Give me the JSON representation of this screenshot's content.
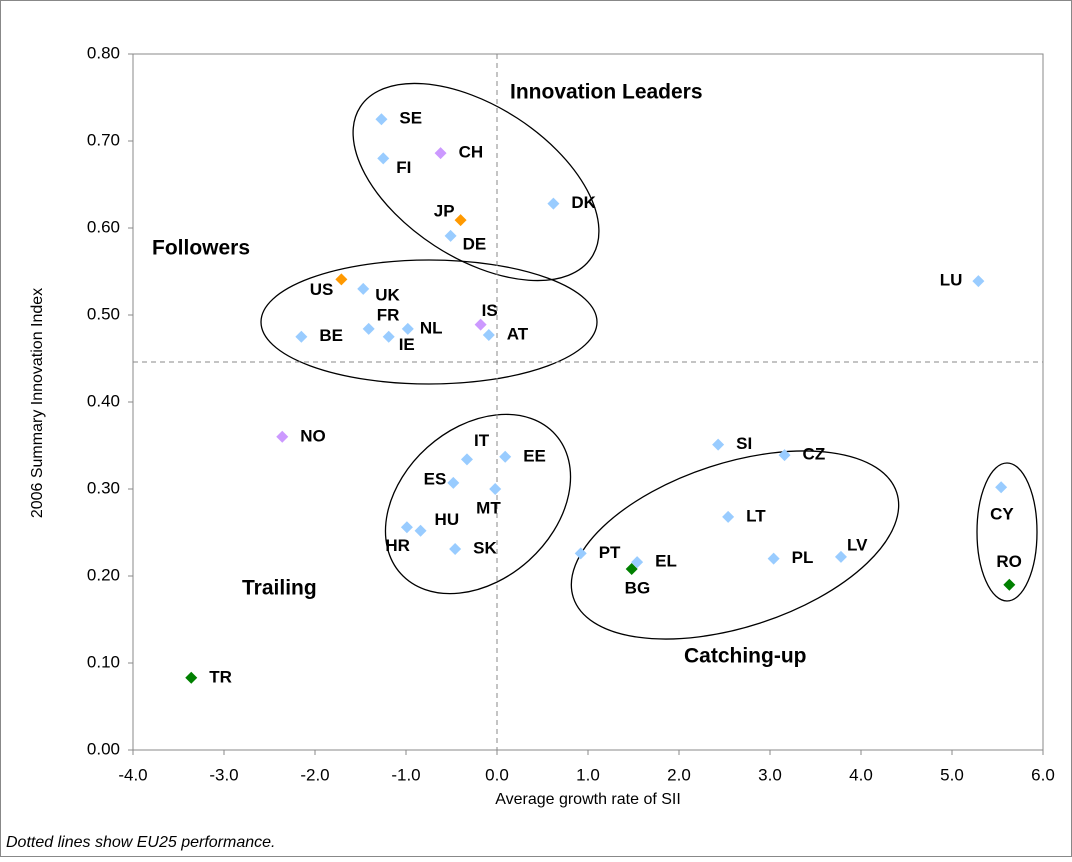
{
  "chart_data": {
    "type": "scatter",
    "x_label": "Average growth rate of SII",
    "y_label": "2006 Summary Innovation Index",
    "footnote": "Dotted lines show EU25 performance.",
    "groups": [
      "Innovation Leaders",
      "Followers",
      "Trailing",
      "Catching-up"
    ],
    "xlim": [
      -4.0,
      6.0
    ],
    "ylim": [
      0.0,
      0.8
    ],
    "xticks": [
      {
        "value": -4,
        "label": "-4.0"
      },
      {
        "value": -3,
        "label": "-3.0"
      },
      {
        "value": -2,
        "label": "-2.0"
      },
      {
        "value": -1,
        "label": "-1.0"
      },
      {
        "value": 0,
        "label": "0.0"
      },
      {
        "value": 1,
        "label": "1.0"
      },
      {
        "value": 2,
        "label": "2.0"
      },
      {
        "value": 3,
        "label": "3.0"
      },
      {
        "value": 4,
        "label": "4.0"
      },
      {
        "value": 5,
        "label": "5.0"
      },
      {
        "value": 6,
        "label": "6.0"
      }
    ],
    "yticks": [
      {
        "value": 0,
        "label": "0.00"
      },
      {
        "value": 0.1,
        "label": "0.10"
      },
      {
        "value": 0.2,
        "label": "0.20"
      },
      {
        "value": 0.3,
        "label": "0.30"
      },
      {
        "value": 0.4,
        "label": "0.40"
      },
      {
        "value": 0.5,
        "label": "0.50"
      },
      {
        "value": 0.6,
        "label": "0.60"
      },
      {
        "value": 0.7,
        "label": "0.70"
      },
      {
        "value": 0.8,
        "label": "0.80"
      }
    ],
    "reference_x": 0.0,
    "reference_y": 0.446,
    "labels": [
      "SE",
      "FI",
      "CH",
      "DK",
      "JP",
      "DE",
      "US",
      "UK",
      "LU",
      "BE",
      "FR",
      "IE",
      "NL",
      "IS",
      "AT",
      "NO",
      "IT",
      "EE",
      "ES",
      "MT",
      "HR",
      "HU",
      "SK",
      "SI",
      "CZ",
      "LT",
      "PT",
      "EL",
      "BG",
      "PL",
      "LV",
      "CY",
      "RO",
      "TR"
    ],
    "x": [
      -1.27,
      -1.25,
      -0.62,
      0.62,
      -0.4,
      -0.51,
      -1.71,
      -1.47,
      5.29,
      -2.15,
      -1.41,
      -1.19,
      -0.98,
      -0.18,
      -0.09,
      -2.36,
      -0.33,
      0.09,
      -0.48,
      -0.02,
      -0.99,
      -0.84,
      -0.46,
      2.43,
      3.16,
      2.54,
      0.92,
      1.54,
      1.48,
      3.04,
      3.78,
      5.54,
      5.63,
      -3.36
    ],
    "values": [
      0.725,
      0.68,
      0.686,
      0.628,
      0.609,
      0.591,
      0.541,
      0.53,
      0.539,
      0.475,
      0.484,
      0.475,
      0.484,
      0.489,
      0.477,
      0.36,
      0.334,
      0.337,
      0.307,
      0.3,
      0.256,
      0.252,
      0.231,
      0.351,
      0.339,
      0.268,
      0.226,
      0.216,
      0.208,
      0.22,
      0.222,
      0.302,
      0.19,
      0.083
    ],
    "colors": [
      "#99ccff",
      "#99ccff",
      "#cc99ff",
      "#99ccff",
      "#ff9900",
      "#99ccff",
      "#ff9900",
      "#99ccff",
      "#99ccff",
      "#99ccff",
      "#99ccff",
      "#99ccff",
      "#99ccff",
      "#cc99ff",
      "#99ccff",
      "#cc99ff",
      "#99ccff",
      "#99ccff",
      "#99ccff",
      "#99ccff",
      "#99ccff",
      "#99ccff",
      "#99ccff",
      "#99ccff",
      "#99ccff",
      "#99ccff",
      "#99ccff",
      "#99ccff",
      "#008000",
      "#99ccff",
      "#99ccff",
      "#99ccff",
      "#008000",
      "#008000"
    ]
  }
}
